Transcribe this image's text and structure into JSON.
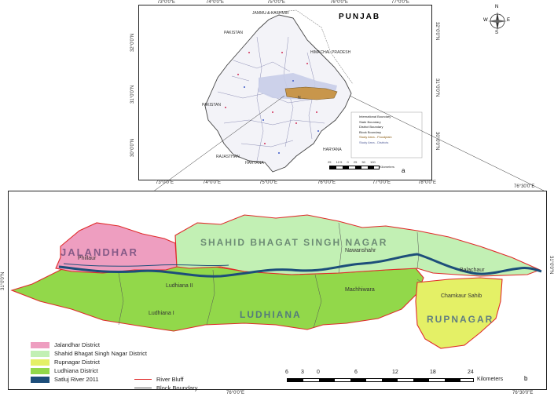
{
  "top_map": {
    "title": "PUNJAB",
    "panel_label": "a",
    "lon_ticks": [
      "73°0'0\"E",
      "74°0'0\"E",
      "75°0'0\"E",
      "76°0'0\"E",
      "77°0'0\"E"
    ],
    "lon_ticks_bottom": [
      "73°0'0\"E",
      "74°0'0\"E",
      "75°0'0\"E",
      "76°0'0\"E",
      "77°0'0\"E",
      "78°0'0\"E"
    ],
    "lat_ticks": [
      "32°0'0\"N",
      "31°0'0\"N",
      "30°0'0\"N"
    ],
    "region_labels": [
      "JAMMU & KASHMIR",
      "PAKISTAN",
      "HIMACHAL PRADESH",
      "PAKISTAN",
      "RAJASTHAN",
      "HARYANA",
      "HARYANA",
      "N"
    ],
    "legend_items": [
      "International Boundary",
      "State Boundary",
      "District Boundary",
      "Block Boundary",
      "Study Area - Floodplain",
      "Study Area - Districts"
    ],
    "scale_numbers": [
      "25",
      "12.5",
      "0",
      "25",
      "50",
      "100"
    ],
    "scale_unit": "Kilometers",
    "colors": {
      "punjab_fill": "#f2f2f7",
      "study_area": "#c8964b",
      "district_fill": "#cfd5ec"
    }
  },
  "compass": {
    "letters": [
      "N",
      "E",
      "S",
      "W"
    ]
  },
  "bottom_map": {
    "panel_label": "b",
    "lon_ticks_top": [
      "76°0'0\"E",
      "76°30'0\"E"
    ],
    "lon_ticks_bottom": [
      "76°0'0\"E",
      "76°30'0\"E"
    ],
    "lat_ticks": [
      "31°0'0\"N",
      "31°0'0\"N"
    ],
    "district_labels": {
      "jalandhar": "JALANDHAR",
      "sbs_nagar": "SHAHID BHAGAT SINGH NAGAR",
      "ludhiana": "LUDHIANA",
      "rupnagar": "RUPNAGAR"
    },
    "block_labels": [
      "Phillaur",
      "Ludhiana II",
      "Ludhiana I",
      "Nawanshahr",
      "Machhiwara",
      "Balachaur",
      "Chamkaur Sahib"
    ],
    "legend": [
      {
        "label": "Jalandhar District",
        "color": "#ee9ec0"
      },
      {
        "label": "Shahid Bhagat Singh Nagar District",
        "color": "#c2f0b4"
      },
      {
        "label": "Rupnagar District",
        "color": "#e4f066"
      },
      {
        "label": "Ludhiana District",
        "color": "#92d84a"
      },
      {
        "label": "Satluj River 2011",
        "color": "#1d4e7a"
      }
    ],
    "line_legend": [
      {
        "label": "River Bluff",
        "color": "#e02a2a"
      },
      {
        "label": "Block Boundary",
        "color": "#555555"
      }
    ],
    "scale_numbers": [
      "6",
      "3",
      "0",
      "6",
      "12",
      "18",
      "24"
    ],
    "scale_unit": "Kilometers"
  }
}
